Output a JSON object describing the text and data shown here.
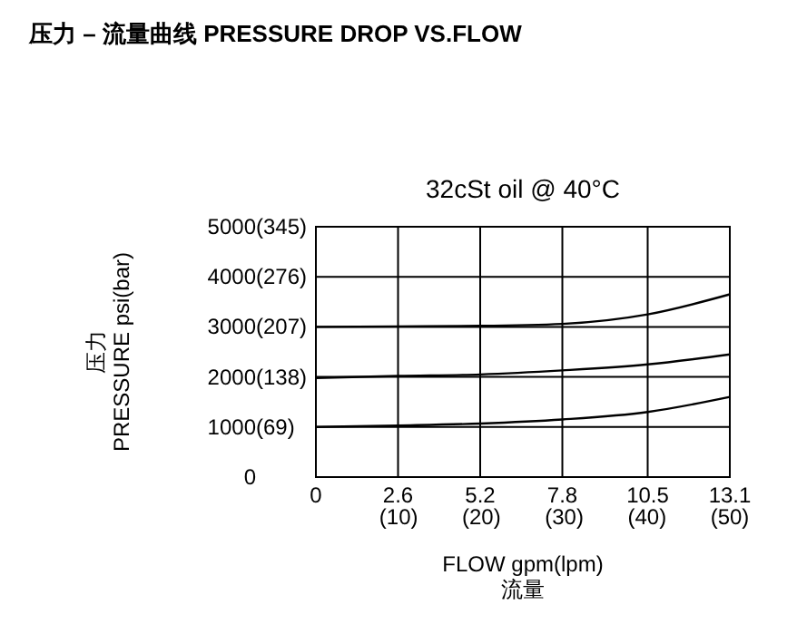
{
  "chart_data": {
    "type": "line",
    "title": "压力 – 流量曲线 PRESSURE DROP VS.FLOW",
    "subtitle": "32cSt  oil @ 40°C",
    "xlabel": "FLOW gpm(lpm)\n流量",
    "ylabel": "压力\nPRESSURE psi(bar)",
    "x": [
      0,
      2.6,
      5.2,
      7.8,
      10.5,
      13.1
    ],
    "series": [
      {
        "color": "#000000",
        "values": [
          1000,
          1030,
          1070,
          1150,
          1300,
          1600
        ]
      },
      {
        "color": "#000000",
        "values": [
          1980,
          2020,
          2050,
          2130,
          2250,
          2450
        ]
      },
      {
        "color": "#000000",
        "values": [
          3000,
          3010,
          3020,
          3060,
          3250,
          3650
        ]
      }
    ],
    "xlim": [
      0,
      13.1
    ],
    "ylim": [
      0,
      5000
    ],
    "xticks": [
      0,
      2.6,
      5.2,
      7.8,
      10.5,
      13.1
    ],
    "yticks": [
      0,
      1000,
      2000,
      3000,
      4000,
      5000
    ],
    "x2lim": [
      0,
      50
    ],
    "x2ticks": [
      {
        "value": 10,
        "label": "(10)"
      },
      {
        "value": 20,
        "label": "(20)"
      },
      {
        "value": 30,
        "label": "(30)"
      },
      {
        "value": 40,
        "label": "(40)"
      },
      {
        "value": 50,
        "label": "(50)"
      }
    ],
    "y2lim": [
      0,
      345
    ],
    "y2ticks": [
      {
        "value": 69,
        "label": "(69)"
      },
      {
        "value": 138,
        "label": "(138)"
      },
      {
        "value": 207,
        "label": "(207)"
      },
      {
        "value": 276,
        "label": "(276)"
      },
      {
        "value": 345,
        "label": "(345)"
      }
    ],
    "grid": true,
    "marker": "none",
    "line_style": "solid"
  }
}
